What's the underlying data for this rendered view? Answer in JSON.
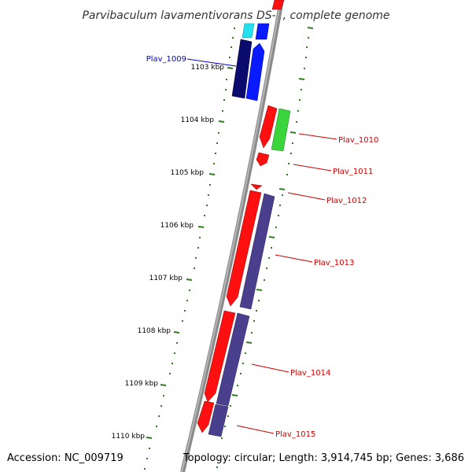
{
  "title": "Parvibaculum lavamentivorans DS-1, complete genome",
  "footer": {
    "accession": "Accession: NC_009719",
    "summary": "Topology: circular; Length: 3,914,745 bp; Genes: 3,686"
  },
  "scale_labels": [
    "1103 kbp",
    "1104 kbp",
    "1105 kbp",
    "1106 kbp",
    "1107 kbp",
    "1108 kbp",
    "1109 kbp",
    "1110 kbp"
  ],
  "gene_labels": [
    {
      "id": "plav_1009",
      "text": "Plav_1009"
    },
    {
      "id": "plav_1010",
      "text": "Plav_1010"
    },
    {
      "id": "plav_1011",
      "text": "Plav_1011"
    },
    {
      "id": "plav_1012",
      "text": "Plav_1012"
    },
    {
      "id": "plav_1013",
      "text": "Plav_1013"
    },
    {
      "id": "plav_1014",
      "text": "Plav_1014"
    },
    {
      "id": "plav_1015",
      "text": "Plav_1015"
    }
  ],
  "colors": {
    "backbone": "#8a8a8a",
    "tick": "#2e7d1e",
    "label_blue": "#0000cc",
    "label_red": "#cc0000",
    "navy": "#0b0b6e",
    "blue": "#0a1aff",
    "cyan": "#22e0ee",
    "red": "#ff1010",
    "green": "#3cd43c",
    "slate": "#4a3f8c"
  }
}
